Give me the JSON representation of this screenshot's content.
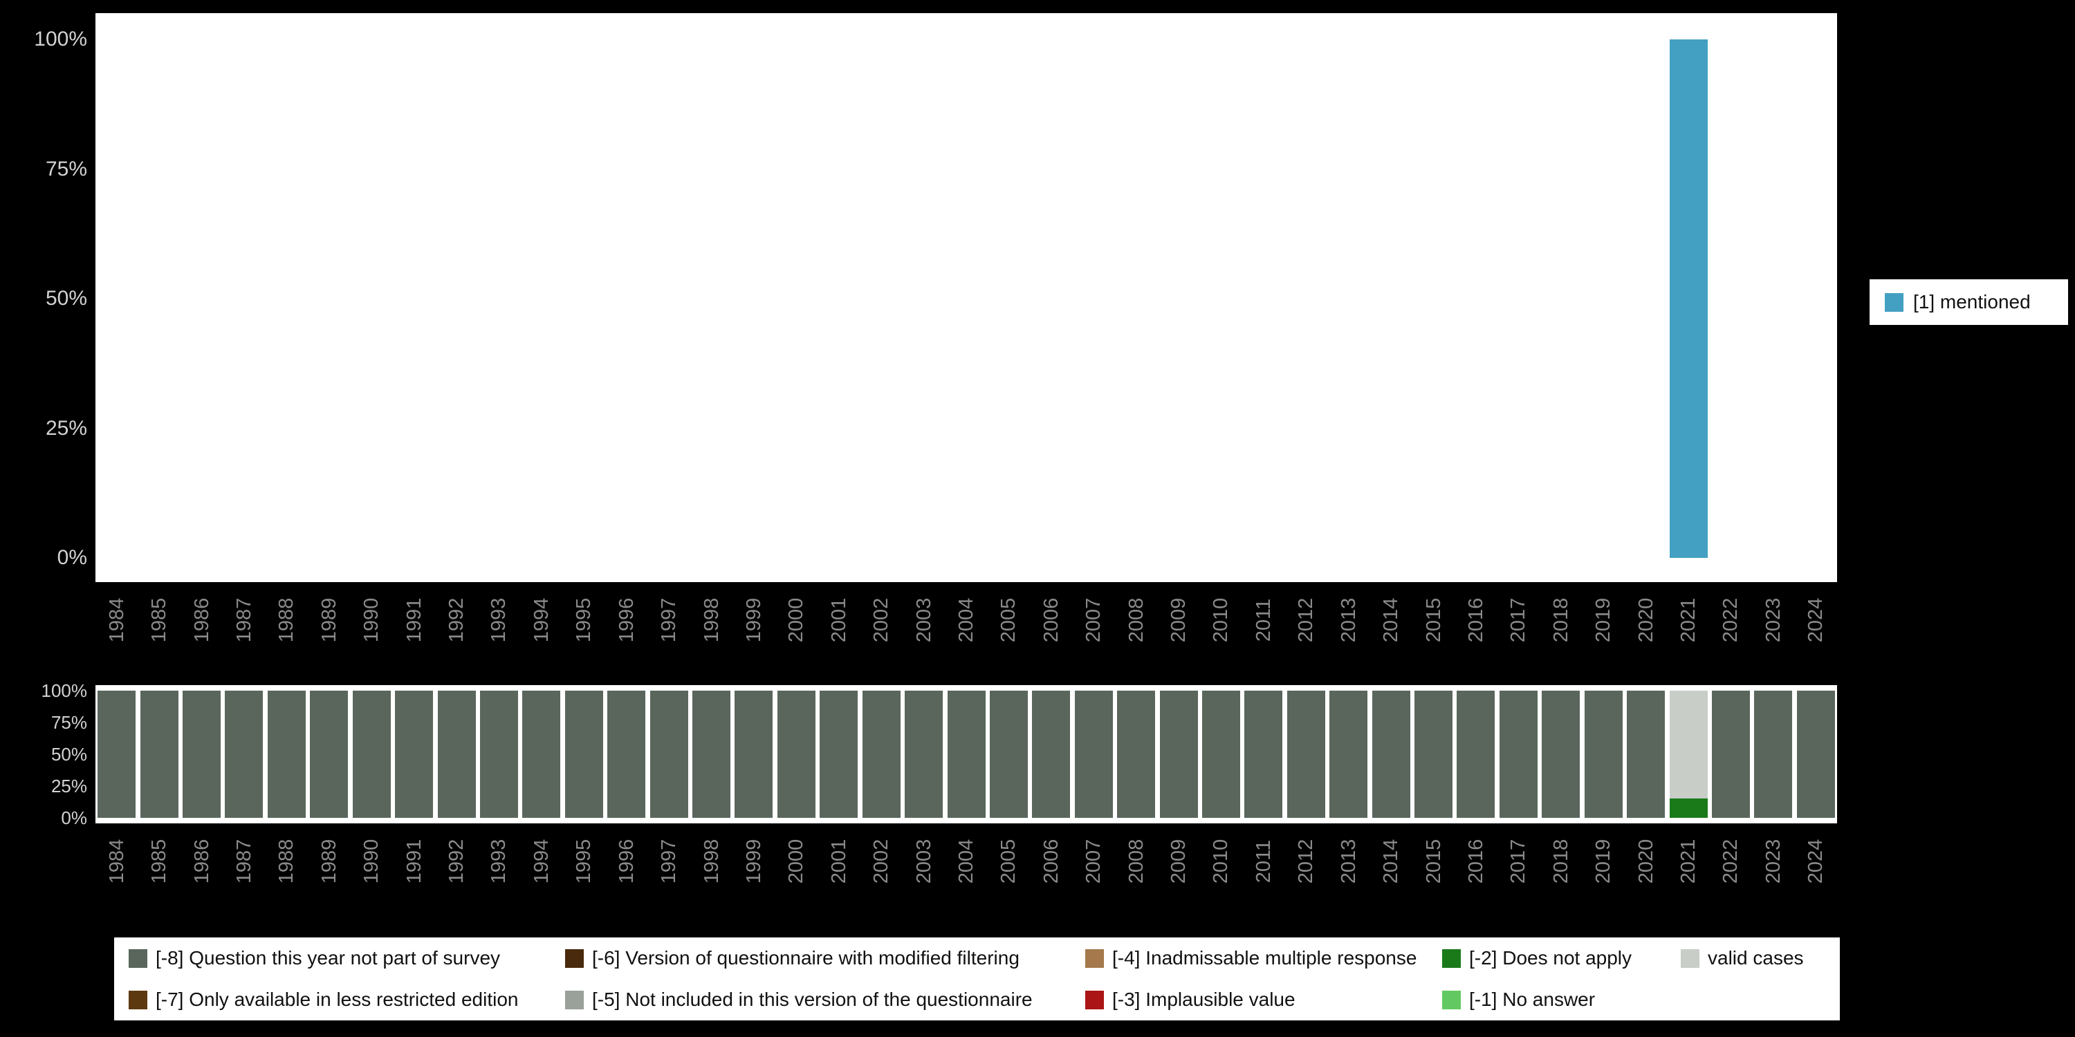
{
  "colors": {
    "background": "#000000",
    "panel": "#ffffff",
    "x_tick_text": "#8a8a8a",
    "y_tick_text": "#d2d2d2",
    "mentioned": "#43a0c2",
    "not_part_of_survey": "#5a665c",
    "does_not_apply": "#1a7a1a",
    "valid_cases": "#c8cdc8"
  },
  "legend_right": {
    "items": [
      {
        "label": "[1] mentioned",
        "color": "#43a0c2"
      }
    ]
  },
  "legend_bottom": {
    "items": [
      {
        "label": "[-8] Question this year not part of survey",
        "color": "#5a665c"
      },
      {
        "label": "[-7] Only available in less restricted edition",
        "color": "#5c390f"
      },
      {
        "label": "[-6] Version of questionnaire with modified filtering",
        "color": "#4a2a0c"
      },
      {
        "label": "[-5] Not included in this version of the questionnaire",
        "color": "#9aa09a"
      },
      {
        "label": "[-4] Inadmissable multiple response",
        "color": "#a5794b"
      },
      {
        "label": "[-3] Implausible value",
        "color": "#ab1515"
      },
      {
        "label": "[-2] Does not apply",
        "color": "#1a7a1a"
      },
      {
        "label": "[-1] No answer",
        "color": "#62c962"
      },
      {
        "label": "valid cases",
        "color": "#c8cdc8"
      }
    ]
  },
  "chart_data": [
    {
      "id": "frequency-by-year",
      "type": "bar",
      "title": "",
      "xlabel": "",
      "ylabel": "",
      "ylim": [
        0,
        100
      ],
      "grid": false,
      "legend_position": "right",
      "yticks": [
        {
          "label": "0%",
          "value": 0
        },
        {
          "label": "25%",
          "value": 25
        },
        {
          "label": "50%",
          "value": 50
        },
        {
          "label": "75%",
          "value": 75
        },
        {
          "label": "100%",
          "value": 100
        }
      ],
      "categories": [
        1984,
        1985,
        1986,
        1987,
        1988,
        1989,
        1990,
        1991,
        1992,
        1993,
        1994,
        1995,
        1996,
        1997,
        1998,
        1999,
        2000,
        2001,
        2002,
        2003,
        2004,
        2005,
        2006,
        2007,
        2008,
        2009,
        2010,
        2011,
        2012,
        2013,
        2014,
        2015,
        2016,
        2017,
        2018,
        2019,
        2020,
        2021,
        2022,
        2023,
        2024
      ],
      "series": [
        {
          "name": "[1] mentioned",
          "color": "#43a0c2",
          "values": [
            null,
            null,
            null,
            null,
            null,
            null,
            null,
            null,
            null,
            null,
            null,
            null,
            null,
            null,
            null,
            null,
            null,
            null,
            null,
            null,
            null,
            null,
            null,
            null,
            null,
            null,
            null,
            null,
            null,
            null,
            null,
            null,
            null,
            null,
            null,
            null,
            null,
            100,
            null,
            null,
            null
          ]
        }
      ]
    },
    {
      "id": "missing-values-by-year",
      "type": "stacked-bar",
      "title": "",
      "xlabel": "",
      "ylabel": "",
      "ylim": [
        0,
        100
      ],
      "grid": false,
      "legend_position": "bottom",
      "yticks": [
        {
          "label": "0%",
          "value": 0
        },
        {
          "label": "25%",
          "value": 25
        },
        {
          "label": "50%",
          "value": 50
        },
        {
          "label": "75%",
          "value": 75
        },
        {
          "label": "100%",
          "value": 100
        }
      ],
      "categories": [
        1984,
        1985,
        1986,
        1987,
        1988,
        1989,
        1990,
        1991,
        1992,
        1993,
        1994,
        1995,
        1996,
        1997,
        1998,
        1999,
        2000,
        2001,
        2002,
        2003,
        2004,
        2005,
        2006,
        2007,
        2008,
        2009,
        2010,
        2011,
        2012,
        2013,
        2014,
        2015,
        2016,
        2017,
        2018,
        2019,
        2020,
        2021,
        2022,
        2023,
        2024
      ],
      "series": [
        {
          "name": "[-8] Question this year not part of survey",
          "color": "#5a665c",
          "values": [
            100,
            100,
            100,
            100,
            100,
            100,
            100,
            100,
            100,
            100,
            100,
            100,
            100,
            100,
            100,
            100,
            100,
            100,
            100,
            100,
            100,
            100,
            100,
            100,
            100,
            100,
            100,
            100,
            100,
            100,
            100,
            100,
            100,
            100,
            100,
            100,
            100,
            0,
            100,
            100,
            100
          ]
        },
        {
          "name": "[-2] Does not apply",
          "color": "#1a7a1a",
          "values": [
            0,
            0,
            0,
            0,
            0,
            0,
            0,
            0,
            0,
            0,
            0,
            0,
            0,
            0,
            0,
            0,
            0,
            0,
            0,
            0,
            0,
            0,
            0,
            0,
            0,
            0,
            0,
            0,
            0,
            0,
            0,
            0,
            0,
            0,
            0,
            0,
            0,
            15,
            0,
            0,
            0
          ]
        },
        {
          "name": "valid cases",
          "color": "#c8cdc8",
          "values": [
            0,
            0,
            0,
            0,
            0,
            0,
            0,
            0,
            0,
            0,
            0,
            0,
            0,
            0,
            0,
            0,
            0,
            0,
            0,
            0,
            0,
            0,
            0,
            0,
            0,
            0,
            0,
            0,
            0,
            0,
            0,
            0,
            0,
            0,
            0,
            0,
            0,
            85,
            0,
            0,
            0
          ]
        }
      ]
    }
  ]
}
